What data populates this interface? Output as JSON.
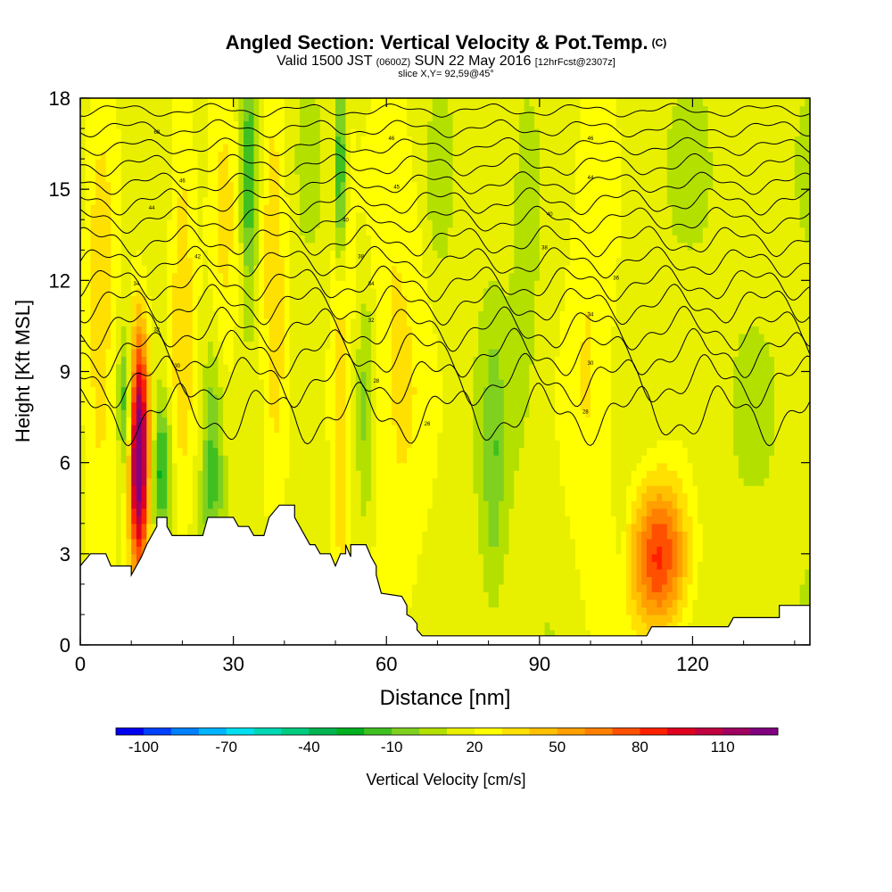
{
  "title": {
    "main": "Angled Section: Vertical Velocity & Pot.Temp.",
    "tag": "(C)",
    "valid_prefix": "Valid 1500 JST",
    "valid_utc": "(0600Z)",
    "valid_date": "SUN 22 May 2016",
    "forecast": "[12hrFcst@2307z]",
    "slice": "slice X,Y= 92,59@45°"
  },
  "chart_data": {
    "type": "heatmap",
    "xlabel": "Distance [nm]",
    "ylabel": "Height [Kft MSL]",
    "xlim": [
      0,
      143
    ],
    "ylim": [
      0,
      18
    ],
    "xticks": [
      0,
      30,
      60,
      90,
      120
    ],
    "yticks": [
      0,
      3,
      6,
      9,
      12,
      15,
      18
    ],
    "colorbar": {
      "label": "Vertical Velocity [cm/s]",
      "tick_values": [
        -100,
        -70,
        -40,
        -10,
        20,
        50,
        80,
        110
      ],
      "tick_labels": [
        "-100",
        "-70",
        "-40",
        "-10",
        "20",
        "50",
        "80",
        "110"
      ],
      "min": -110,
      "max": 130,
      "colors": [
        "#0000f0",
        "#0040ff",
        "#0080ff",
        "#00b4ff",
        "#00e0f0",
        "#00d8b4",
        "#00cc80",
        "#00b450",
        "#00b020",
        "#40c020",
        "#80d020",
        "#b4e000",
        "#e8f000",
        "#ffff00",
        "#ffe000",
        "#ffc000",
        "#ffa000",
        "#ff8000",
        "#ff5000",
        "#ff2000",
        "#e00020",
        "#c00040",
        "#a00060",
        "#800080"
      ]
    },
    "terrain_profile": [
      [
        0,
        2.6
      ],
      [
        2,
        3.0
      ],
      [
        5,
        3.0
      ],
      [
        6,
        2.6
      ],
      [
        9,
        2.6
      ],
      [
        10,
        2.6
      ],
      [
        10,
        2.3
      ],
      [
        11,
        2.6
      ],
      [
        12,
        2.9
      ],
      [
        13,
        3.3
      ],
      [
        14,
        3.6
      ],
      [
        15,
        3.9
      ],
      [
        15,
        4.2
      ],
      [
        17,
        4.2
      ],
      [
        17,
        3.9
      ],
      [
        18,
        3.6
      ],
      [
        19,
        3.6
      ],
      [
        24,
        3.6
      ],
      [
        25,
        4.2
      ],
      [
        30,
        4.2
      ],
      [
        31,
        3.9
      ],
      [
        33,
        3.9
      ],
      [
        34,
        3.6
      ],
      [
        36,
        3.6
      ],
      [
        37,
        4.2
      ],
      [
        39,
        4.6
      ],
      [
        42,
        4.6
      ],
      [
        42,
        4.2
      ],
      [
        43,
        3.9
      ],
      [
        44,
        3.6
      ],
      [
        45,
        3.3
      ],
      [
        46,
        3.3
      ],
      [
        47,
        3.0
      ],
      [
        49,
        3.0
      ],
      [
        50,
        2.6
      ],
      [
        51,
        3.0
      ],
      [
        52,
        3.0
      ],
      [
        52,
        3.3
      ],
      [
        53,
        2.9
      ],
      [
        53,
        3.3
      ],
      [
        56,
        3.3
      ],
      [
        57,
        2.9
      ],
      [
        58,
        2.6
      ],
      [
        58,
        2.3
      ],
      [
        59,
        1.7
      ],
      [
        63,
        1.6
      ],
      [
        64,
        1.3
      ],
      [
        64,
        1.0
      ],
      [
        65,
        0.9
      ],
      [
        66,
        0.7
      ],
      [
        66,
        0.5
      ],
      [
        67,
        0.3
      ],
      [
        111,
        0.3
      ],
      [
        112,
        0.6
      ],
      [
        114,
        0.6
      ],
      [
        127,
        0.6
      ],
      [
        128,
        0.9
      ],
      [
        137,
        0.9
      ],
      [
        137,
        1.3
      ],
      [
        143,
        1.3
      ]
    ],
    "features": [
      {
        "name": "updraft",
        "x": 11.5,
        "y": 6.3,
        "sx": 1.4,
        "sy": 2.8,
        "peak": 125
      },
      {
        "name": "updraft",
        "x": 113.5,
        "y": 2.9,
        "sx": 4.0,
        "sy": 1.8,
        "peak": 70
      },
      {
        "name": "updraft_column",
        "x": 20,
        "y": 12.0,
        "sx": 2.0,
        "sy": 6.0,
        "peak": 25
      },
      {
        "name": "updraft_column",
        "x": 28,
        "y": 13.0,
        "sx": 2.5,
        "sy": 5.0,
        "peak": 20
      },
      {
        "name": "updraft_column",
        "x": 38,
        "y": 12.0,
        "sx": 2.0,
        "sy": 6.0,
        "peak": 25
      },
      {
        "name": "updraft_column",
        "x": 51,
        "y": 9.0,
        "sx": 1.5,
        "sy": 7.0,
        "peak": 25
      },
      {
        "name": "updraft_column",
        "x": 62,
        "y": 9.0,
        "sx": 5.0,
        "sy": 7.0,
        "peak": 20
      },
      {
        "name": "updraft_column",
        "x": 100,
        "y": 10.0,
        "sx": 4.0,
        "sy": 8.0,
        "peak": 18
      },
      {
        "name": "updraft_column",
        "x": 4,
        "y": 10.0,
        "sx": 2.5,
        "sy": 6.0,
        "peak": 25
      },
      {
        "name": "downdraft",
        "x": 9,
        "y": 8.0,
        "sx": 1.0,
        "sy": 1.5,
        "peak": -40
      },
      {
        "name": "downdraft",
        "x": 16,
        "y": 5.8,
        "sx": 1.3,
        "sy": 1.6,
        "peak": -40
      },
      {
        "name": "downdraft",
        "x": 26,
        "y": 6.0,
        "sx": 1.5,
        "sy": 3.0,
        "peak": -30
      },
      {
        "name": "downdraft",
        "x": 33,
        "y": 15.5,
        "sx": 1.2,
        "sy": 2.5,
        "peak": -40
      },
      {
        "name": "downdraft",
        "x": 51,
        "y": 15.5,
        "sx": 0.8,
        "sy": 2.5,
        "peak": -50
      },
      {
        "name": "downdraft",
        "x": 56,
        "y": 8.0,
        "sx": 1.2,
        "sy": 3.0,
        "peak": -20
      },
      {
        "name": "downdraft",
        "x": 81,
        "y": 6.0,
        "sx": 1.5,
        "sy": 3.0,
        "peak": -20
      },
      {
        "name": "downdraft",
        "x": 87,
        "y": 13.0,
        "sx": 1.5,
        "sy": 3.0,
        "peak": -10
      },
      {
        "name": "downdraft",
        "x": 106,
        "y": 4.0,
        "sx": 1.0,
        "sy": 1.5,
        "peak": -10
      },
      {
        "name": "downdraft",
        "x": 70,
        "y": 15.0,
        "sx": 1.5,
        "sy": 2.0,
        "peak": -10
      }
    ],
    "isentropes": [
      {
        "base": 17.6,
        "wiggle": 0.15
      },
      {
        "base": 17.0,
        "wiggle": 0.2
      },
      {
        "base": 16.4,
        "wiggle": 0.2
      },
      {
        "base": 15.8,
        "wiggle": 0.25
      },
      {
        "base": 15.2,
        "wiggle": 0.25
      },
      {
        "base": 14.6,
        "wiggle": 0.3
      },
      {
        "base": 14.0,
        "wiggle": 0.3
      },
      {
        "base": 13.3,
        "wiggle": 0.35
      },
      {
        "base": 12.6,
        "wiggle": 0.35
      },
      {
        "base": 11.9,
        "wiggle": 0.4
      },
      {
        "base": 11.2,
        "wiggle": 0.45
      },
      {
        "base": 10.4,
        "wiggle": 0.5
      },
      {
        "base": 9.6,
        "wiggle": 0.55
      },
      {
        "base": 8.7,
        "wiggle": 0.6
      },
      {
        "base": 7.6,
        "wiggle": 0.7
      }
    ],
    "contour_labels": [
      {
        "x": 15,
        "y": 16.9,
        "text": "68"
      },
      {
        "x": 20,
        "y": 15.3,
        "text": "46"
      },
      {
        "x": 14,
        "y": 14.4,
        "text": "44"
      },
      {
        "x": 23,
        "y": 12.8,
        "text": "42"
      },
      {
        "x": 11,
        "y": 11.9,
        "text": "34"
      },
      {
        "x": 15,
        "y": 10.4,
        "text": "32"
      },
      {
        "x": 19,
        "y": 9.2,
        "text": "30"
      },
      {
        "x": 61,
        "y": 16.7,
        "text": "46"
      },
      {
        "x": 62,
        "y": 15.1,
        "text": "45"
      },
      {
        "x": 52,
        "y": 14.0,
        "text": "40"
      },
      {
        "x": 55,
        "y": 12.8,
        "text": "38"
      },
      {
        "x": 57,
        "y": 11.9,
        "text": "34"
      },
      {
        "x": 57,
        "y": 10.7,
        "text": "32"
      },
      {
        "x": 58,
        "y": 8.7,
        "text": "28"
      },
      {
        "x": 68,
        "y": 7.3,
        "text": "26"
      },
      {
        "x": 100,
        "y": 16.7,
        "text": "46"
      },
      {
        "x": 100,
        "y": 15.4,
        "text": "44"
      },
      {
        "x": 92,
        "y": 14.2,
        "text": "40"
      },
      {
        "x": 91,
        "y": 13.1,
        "text": "38"
      },
      {
        "x": 105,
        "y": 12.1,
        "text": "36"
      },
      {
        "x": 100,
        "y": 10.9,
        "text": "34"
      },
      {
        "x": 100,
        "y": 9.3,
        "text": "30"
      },
      {
        "x": 99,
        "y": 7.7,
        "text": "28"
      }
    ]
  }
}
